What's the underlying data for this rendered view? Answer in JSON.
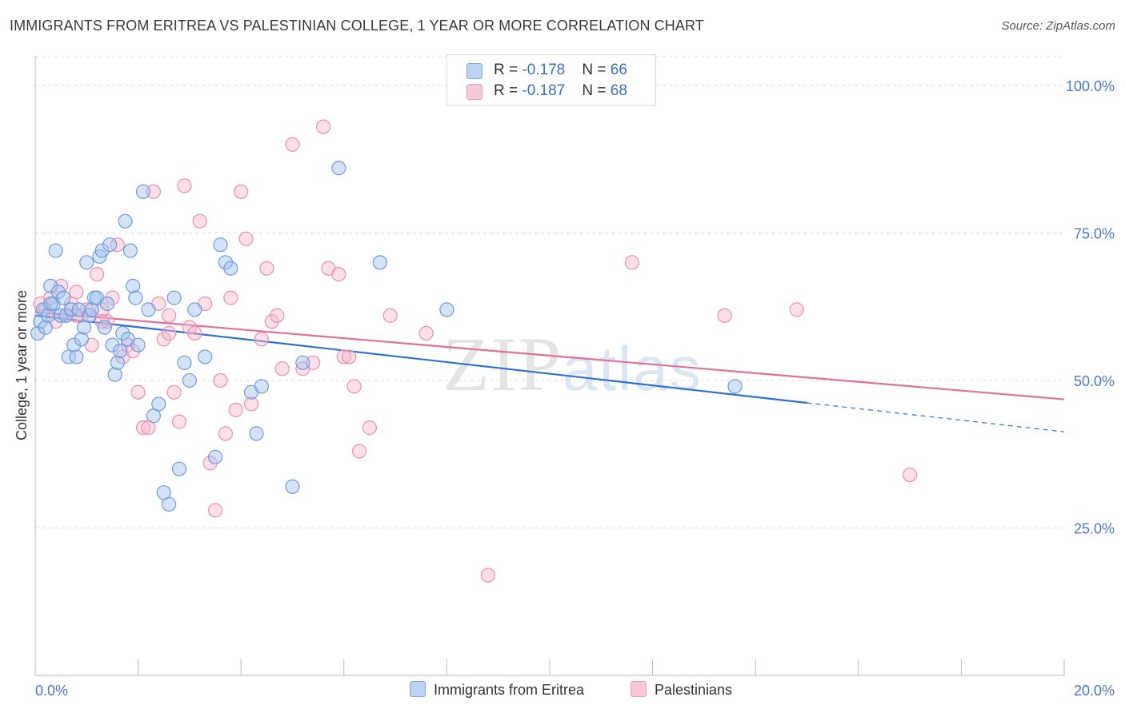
{
  "title": "IMMIGRANTS FROM ERITREA VS PALESTINIAN COLLEGE, 1 YEAR OR MORE CORRELATION CHART",
  "source": "Source: ZipAtlas.com",
  "watermark": {
    "zip": "ZIP",
    "atlas": "atlas"
  },
  "legend": {
    "rows": [
      {
        "r_label": "R = ",
        "r_value": "-0.178",
        "n_label": "N = ",
        "n_value": "66"
      },
      {
        "r_label": "R = ",
        "r_value": "-0.187",
        "n_label": "N = ",
        "n_value": "68"
      }
    ]
  },
  "bottom_legend": [
    "Immigrants from Eritrea",
    "Palestinians"
  ],
  "chart_data": {
    "type": "scatter",
    "title": "IMMIGRANTS FROM ERITREA VS PALESTINIAN COLLEGE, 1 YEAR OR MORE CORRELATION CHART",
    "xlabel": "",
    "ylabel": "College, 1 year or more",
    "xlim": [
      0,
      20
    ],
    "ylim": [
      0,
      105
    ],
    "x_tick_labels": [
      "0.0%",
      "20.0%"
    ],
    "y_ticks": [
      25,
      50,
      75,
      100
    ],
    "y_tick_labels": [
      "25.0%",
      "50.0%",
      "75.0%",
      "100.0%"
    ],
    "grid": true,
    "legend_position": "top-center",
    "colors": {
      "eritrea": "#6f9be0",
      "palestinians": "#ec8fb0",
      "eritrea_line": "#2f6fd0",
      "palestinians_line": "#e0709a"
    },
    "series": [
      {
        "name": "Immigrants from Eritrea",
        "r": -0.178,
        "n": 66,
        "trend": {
          "x0": 0,
          "y0": 61.0,
          "x1": 15,
          "y1": 46.2,
          "dash_to_x": 20,
          "dash_to_y": 41.3
        },
        "points": [
          [
            0.05,
            58
          ],
          [
            0.1,
            60
          ],
          [
            0.15,
            62
          ],
          [
            0.2,
            59
          ],
          [
            0.25,
            61
          ],
          [
            0.3,
            66
          ],
          [
            0.35,
            63
          ],
          [
            0.4,
            72
          ],
          [
            0.45,
            65
          ],
          [
            0.5,
            61
          ],
          [
            0.55,
            64
          ],
          [
            0.6,
            61
          ],
          [
            0.65,
            54
          ],
          [
            0.7,
            62
          ],
          [
            0.75,
            56
          ],
          [
            0.8,
            54
          ],
          [
            0.85,
            62
          ],
          [
            0.9,
            57
          ],
          [
            0.95,
            59
          ],
          [
            1.0,
            70
          ],
          [
            1.05,
            61
          ],
          [
            1.1,
            62
          ],
          [
            1.15,
            64
          ],
          [
            1.2,
            64
          ],
          [
            1.25,
            71
          ],
          [
            1.3,
            72
          ],
          [
            1.35,
            59
          ],
          [
            1.4,
            63
          ],
          [
            1.45,
            73
          ],
          [
            1.5,
            56
          ],
          [
            1.55,
            51
          ],
          [
            1.6,
            53
          ],
          [
            1.65,
            55
          ],
          [
            1.7,
            58
          ],
          [
            1.75,
            77
          ],
          [
            1.8,
            57
          ],
          [
            1.85,
            72
          ],
          [
            1.9,
            66
          ],
          [
            1.95,
            64
          ],
          [
            2.0,
            56
          ],
          [
            2.1,
            82
          ],
          [
            2.2,
            62
          ],
          [
            2.3,
            44
          ],
          [
            2.4,
            46
          ],
          [
            2.5,
            31
          ],
          [
            2.6,
            29
          ],
          [
            2.7,
            64
          ],
          [
            2.8,
            35
          ],
          [
            2.9,
            53
          ],
          [
            3.0,
            50
          ],
          [
            3.1,
            62
          ],
          [
            3.3,
            54
          ],
          [
            3.5,
            37
          ],
          [
            3.6,
            73
          ],
          [
            3.7,
            70
          ],
          [
            3.8,
            69
          ],
          [
            4.2,
            48
          ],
          [
            4.3,
            41
          ],
          [
            4.4,
            49
          ],
          [
            5.0,
            32
          ],
          [
            5.2,
            53
          ],
          [
            5.9,
            86
          ],
          [
            6.7,
            70
          ],
          [
            8.0,
            62
          ],
          [
            13.6,
            49
          ],
          [
            0.3,
            63
          ]
        ]
      },
      {
        "name": "Palestinians",
        "r": -0.187,
        "n": 68,
        "trend": {
          "x0": 0,
          "y0": 61.6,
          "x1": 20,
          "y1": 46.8
        },
        "points": [
          [
            0.1,
            63
          ],
          [
            0.2,
            62
          ],
          [
            0.3,
            64
          ],
          [
            0.4,
            60
          ],
          [
            0.5,
            66
          ],
          [
            0.6,
            61
          ],
          [
            0.7,
            63
          ],
          [
            0.8,
            65
          ],
          [
            0.9,
            61
          ],
          [
            1.0,
            62
          ],
          [
            1.1,
            56
          ],
          [
            1.2,
            68
          ],
          [
            1.3,
            62
          ],
          [
            1.4,
            60
          ],
          [
            1.5,
            64
          ],
          [
            1.6,
            73
          ],
          [
            1.7,
            54
          ],
          [
            1.8,
            56
          ],
          [
            1.9,
            55
          ],
          [
            2.0,
            48
          ],
          [
            2.1,
            42
          ],
          [
            2.2,
            42
          ],
          [
            2.3,
            82
          ],
          [
            2.4,
            63
          ],
          [
            2.5,
            57
          ],
          [
            2.6,
            61
          ],
          [
            2.7,
            48
          ],
          [
            2.8,
            43
          ],
          [
            2.9,
            83
          ],
          [
            3.0,
            59
          ],
          [
            3.1,
            58
          ],
          [
            3.2,
            77
          ],
          [
            3.3,
            63
          ],
          [
            3.4,
            36
          ],
          [
            3.5,
            28
          ],
          [
            3.6,
            50
          ],
          [
            3.7,
            41
          ],
          [
            3.8,
            64
          ],
          [
            3.9,
            45
          ],
          [
            4.0,
            82
          ],
          [
            4.1,
            74
          ],
          [
            4.2,
            46
          ],
          [
            4.4,
            57
          ],
          [
            4.5,
            69
          ],
          [
            4.6,
            60
          ],
          [
            4.7,
            61
          ],
          [
            4.8,
            52
          ],
          [
            5.0,
            90
          ],
          [
            5.2,
            52
          ],
          [
            5.4,
            53
          ],
          [
            5.6,
            93
          ],
          [
            5.7,
            69
          ],
          [
            5.9,
            68
          ],
          [
            6.0,
            54
          ],
          [
            6.1,
            54
          ],
          [
            6.2,
            49
          ],
          [
            6.3,
            38
          ],
          [
            6.5,
            42
          ],
          [
            6.9,
            61
          ],
          [
            7.6,
            58
          ],
          [
            8.8,
            17
          ],
          [
            11.6,
            70
          ],
          [
            13.4,
            61
          ],
          [
            14.8,
            62
          ],
          [
            17.0,
            34
          ],
          [
            0.8,
            61
          ],
          [
            1.3,
            60
          ],
          [
            2.6,
            58
          ]
        ]
      }
    ]
  }
}
